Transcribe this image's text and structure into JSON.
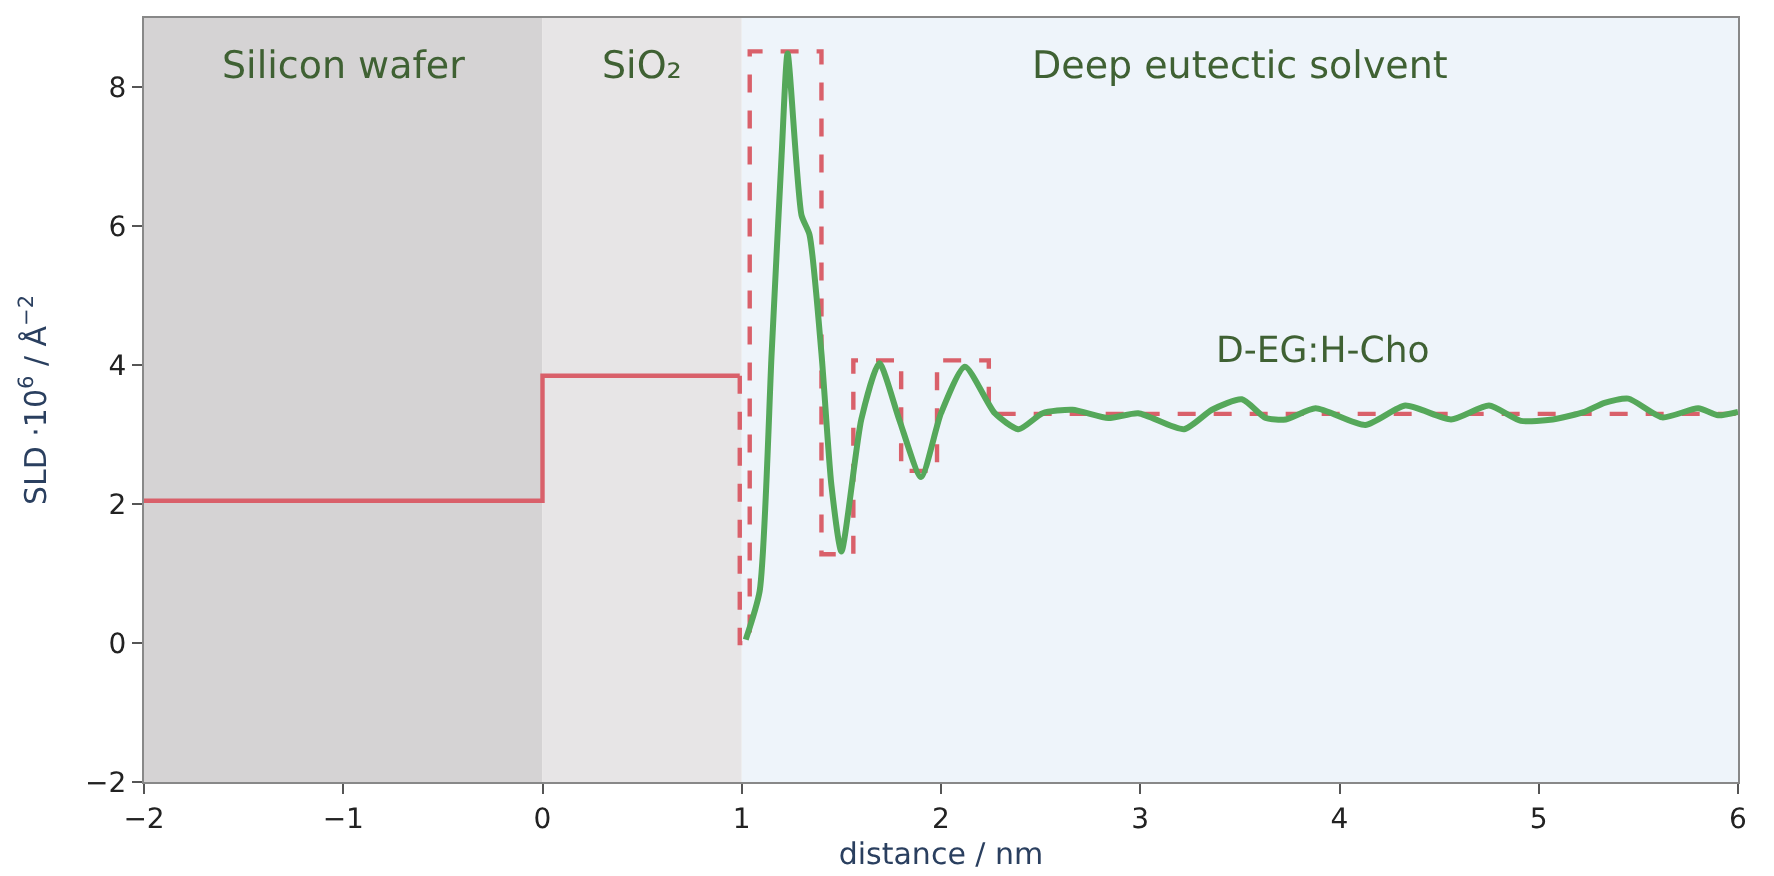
{
  "chart_data": {
    "type": "line",
    "xlabel": "distance / nm",
    "ylabel": "SLD ·10$^{6}$ / Å$^{−2}$",
    "xlim": [
      -2,
      6
    ],
    "ylim": [
      -2,
      9.0
    ],
    "xticks": [
      {
        "value": -2,
        "label": "−2"
      },
      {
        "value": -1,
        "label": "−1"
      },
      0,
      1,
      2,
      3,
      4,
      5,
      6
    ],
    "yticks": [
      {
        "value": -2,
        "label": "−2"
      },
      0,
      2,
      4,
      6,
      8
    ],
    "grid": false,
    "marker": "none",
    "bands": [
      {
        "axis": "x",
        "from": -2,
        "to": 0,
        "label": "Silicon wafer",
        "color": "#d5d3d4"
      },
      {
        "axis": "x",
        "from": 0,
        "to": 1,
        "label": "SiO₂",
        "color": "#e7e5e6"
      },
      {
        "axis": "x",
        "from": 1,
        "to": 6,
        "label": "Deep eutectic solvent",
        "color": "#eef4fa"
      }
    ],
    "annotations": [
      "D-EG:H-Cho"
    ],
    "series": [
      {
        "color": "#d9606a",
        "line_style": "solid",
        "x": [
          -2,
          0,
          0,
          0.99
        ],
        "values": [
          2.05,
          2.05,
          3.85,
          3.85
        ]
      },
      {
        "color": "#d9606a",
        "line_style": "dashed",
        "x": [
          0.99,
          0.99,
          1.04,
          1.04,
          1.4,
          1.4,
          1.56,
          1.56,
          1.8,
          1.8,
          1.98,
          1.98,
          2.24,
          2.24,
          6
        ],
        "values": [
          3.85,
          0,
          0,
          8.52,
          8.52,
          1.28,
          1.28,
          4.07,
          4.07,
          2.48,
          2.48,
          4.07,
          4.07,
          3.3,
          3.3
        ]
      },
      {
        "color": "#55a85a",
        "line_style": "solid",
        "x": [
          1.02,
          1.09,
          1.15,
          1.2,
          1.23,
          1.3,
          1.34,
          1.4,
          1.45,
          1.5,
          1.6,
          1.69,
          1.79,
          1.9,
          2.0,
          2.12,
          2.27,
          2.39,
          2.51,
          2.66,
          2.84,
          2.99,
          3.22,
          3.36,
          3.51,
          3.63,
          3.73,
          3.88,
          4.13,
          4.33,
          4.56,
          4.75,
          4.91,
          5.07,
          5.23,
          5.33,
          5.45,
          5.62,
          5.8,
          5.9,
          6.0
        ],
        "values": [
          0.05,
          0.75,
          4.17,
          7.02,
          8.49,
          6.16,
          5.88,
          4.17,
          2.27,
          1.32,
          3.22,
          4.03,
          3.22,
          2.39,
          3.31,
          3.98,
          3.31,
          3.08,
          3.31,
          3.36,
          3.24,
          3.31,
          3.08,
          3.36,
          3.51,
          3.24,
          3.22,
          3.38,
          3.14,
          3.42,
          3.22,
          3.42,
          3.2,
          3.22,
          3.33,
          3.46,
          3.52,
          3.25,
          3.38,
          3.28,
          3.33
        ]
      }
    ]
  }
}
